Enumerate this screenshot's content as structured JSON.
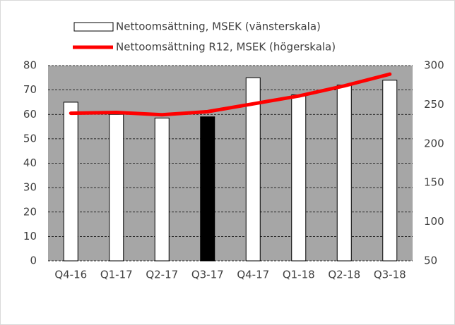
{
  "chart_data": {
    "type": "bar_line",
    "categories": [
      "Q4-16",
      "Q1-17",
      "Q2-17",
      "Q3-17",
      "Q4-17",
      "Q1-18",
      "Q2-18",
      "Q3-18"
    ],
    "series": [
      {
        "name": "Nettoomsättning, MSEK (vänsterskala)",
        "type": "bar",
        "color": "#ffffff",
        "colors": [
          "#ffffff",
          "#ffffff",
          "#ffffff",
          "#000000",
          "#ffffff",
          "#ffffff",
          "#ffffff",
          "#ffffff"
        ],
        "values": [
          65,
          60,
          58.5,
          59,
          75,
          68,
          72,
          74
        ]
      },
      {
        "name": "Nettoomsättning R12, MSEK (högerskala)",
        "type": "line",
        "color": "#ff0000",
        "axis": "y2",
        "values": [
          239,
          240,
          237,
          241,
          251,
          261,
          274,
          289
        ]
      }
    ],
    "ylim": [
      0,
      80
    ],
    "yticks": [
      0,
      10,
      20,
      30,
      40,
      50,
      60,
      70,
      80
    ],
    "y2lim": [
      50,
      300
    ],
    "y2ticks": [
      50,
      100,
      150,
      200,
      250,
      300
    ],
    "grid": true,
    "legend": "top"
  }
}
